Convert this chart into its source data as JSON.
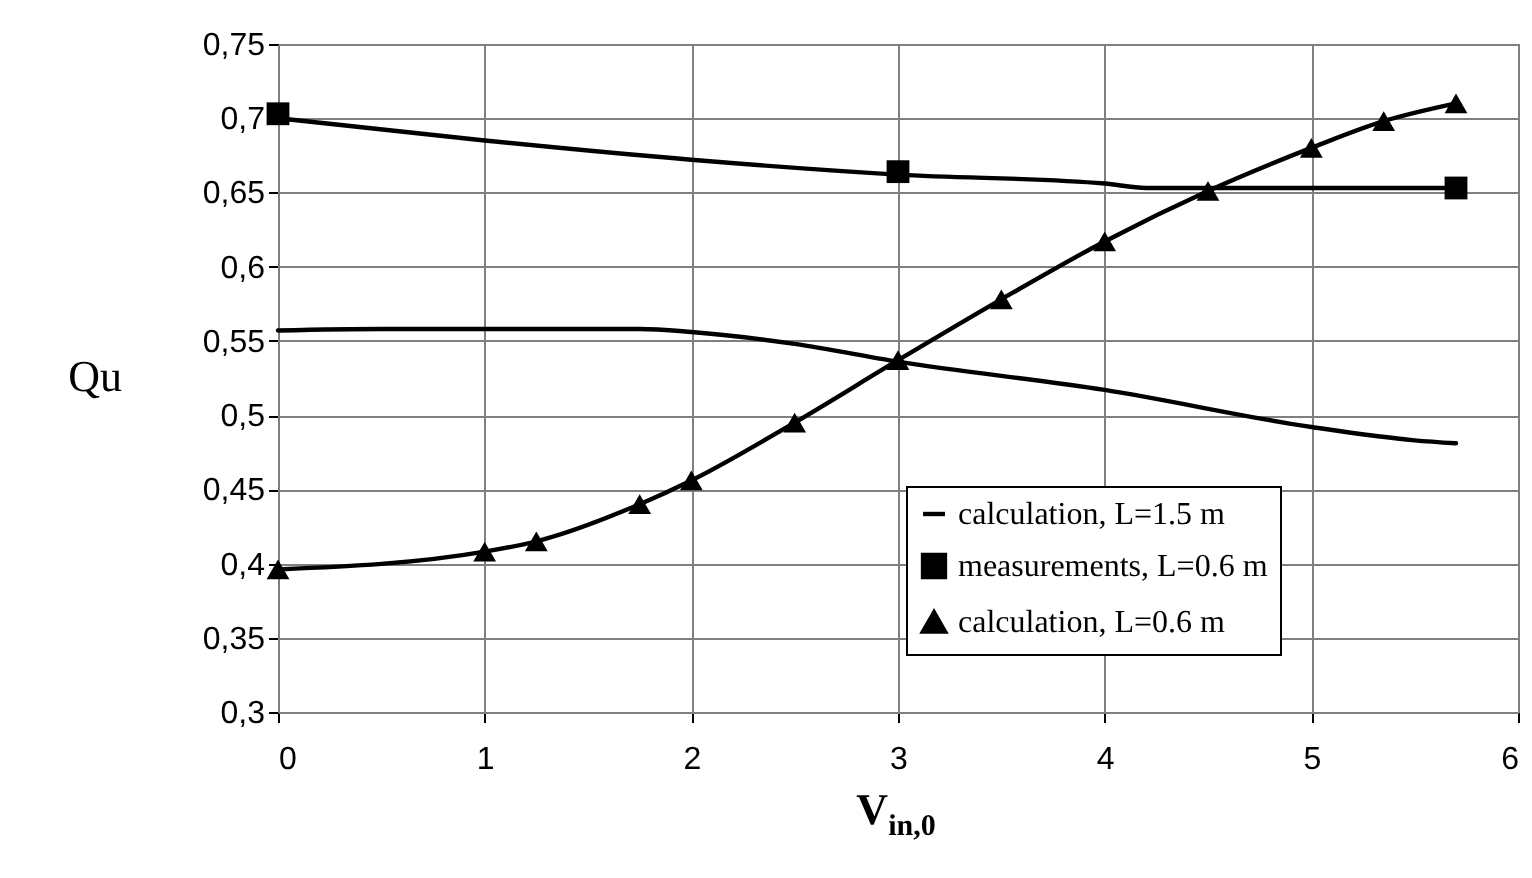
{
  "chart_data": {
    "type": "line",
    "xlabel": "V$_{in,0}$",
    "ylabel": "Qu",
    "xlim": [
      0,
      6
    ],
    "xticks": [
      0,
      1,
      2,
      3,
      4,
      5,
      6
    ],
    "ylim": [
      0.3,
      0.75
    ],
    "yticks": [
      {
        "value": 0.3,
        "label": "0,3"
      },
      {
        "value": 0.35,
        "label": "0,35"
      },
      {
        "value": 0.4,
        "label": "0,4"
      },
      {
        "value": 0.45,
        "label": "0,45"
      },
      {
        "value": 0.5,
        "label": "0,5"
      },
      {
        "value": 0.55,
        "label": "0,55"
      },
      {
        "value": 0.6,
        "label": "0,6"
      },
      {
        "value": 0.65,
        "label": "0,65"
      },
      {
        "value": 0.7,
        "label": "0,7"
      },
      {
        "value": 0.75,
        "label": "0,75"
      }
    ],
    "grid": true,
    "legend": "bottom right",
    "series": [
      {
        "name": "calculation, L=1.5 m",
        "marker": "none",
        "color": "#000000",
        "x": [
          0,
          0.5,
          1,
          1.75,
          2,
          2.5,
          3,
          4,
          5,
          5.5,
          5.7
        ],
        "values": [
          0.557,
          0.558,
          0.558,
          0.558,
          0.556,
          0.548,
          0.536,
          0.517,
          0.492,
          0.483,
          0.481
        ]
      },
      {
        "name": "measurements, L=0.6 m",
        "type": "scatter",
        "marker": "square",
        "color": "#000000",
        "x": [
          0,
          3,
          5.7
        ],
        "values": [
          0.703,
          0.664,
          0.653
        ]
      },
      {
        "name": "calculation, L=0.6 m",
        "marker": "triangle",
        "color": "#000000",
        "x": [
          0,
          1,
          1.25,
          1.75,
          2,
          2.5,
          3,
          3.5,
          4,
          4.5,
          5,
          5.35,
          5.7
        ],
        "values": [
          0.396,
          0.408,
          0.415,
          0.44,
          0.456,
          0.495,
          0.537,
          0.578,
          0.617,
          0.651,
          0.68,
          0.698,
          0.71
        ]
      },
      {
        "marker": "none",
        "color": "#000000",
        "x": [
          0,
          1,
          2,
          3,
          4,
          4.2,
          5,
          5.7
        ],
        "values": [
          0.7,
          0.685,
          0.672,
          0.662,
          0.656,
          0.653,
          0.653,
          0.653
        ]
      }
    ]
  }
}
